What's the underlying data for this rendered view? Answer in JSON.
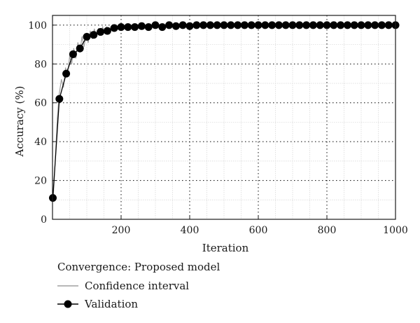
{
  "chart_data": {
    "type": "line",
    "xlabel": "Iteration",
    "ylabel": "Accuracy (%)",
    "xlim": [
      0,
      1000
    ],
    "ylim": [
      0,
      105
    ],
    "xticks": [
      200,
      400,
      600,
      800,
      1000
    ],
    "yticks": [
      0,
      20,
      40,
      60,
      80,
      100
    ],
    "grid": true,
    "legend_title": "Convergence: Proposed model",
    "legend_position": "bottom",
    "series": [
      {
        "name": "Confidence interval",
        "style": "line",
        "color": "#a0a0a0",
        "x": [
          2,
          8,
          14,
          20,
          26,
          32,
          38,
          44,
          50,
          56,
          62,
          68,
          74,
          80,
          86,
          92,
          98,
          104,
          110,
          116,
          122,
          128,
          134,
          140,
          146,
          152,
          158,
          164,
          170,
          176,
          182,
          188,
          194,
          200,
          210,
          220,
          230,
          240,
          250,
          260
        ],
        "values": [
          11,
          30,
          52,
          65,
          72,
          68,
          78,
          74,
          84,
          80,
          88,
          83,
          91,
          86,
          94,
          89,
          95,
          91,
          97,
          93,
          98,
          94,
          98,
          95,
          99,
          96,
          99,
          97,
          99,
          98,
          100,
          98,
          100,
          99,
          99.5,
          99,
          100,
          99.5,
          100,
          99.8
        ]
      },
      {
        "name": "Validation",
        "style": "line-marker",
        "color": "#000000",
        "x": [
          1,
          20,
          40,
          60,
          80,
          100,
          120,
          140,
          160,
          180,
          200,
          220,
          240,
          260,
          280,
          300,
          320,
          340,
          360,
          380,
          400,
          420,
          440,
          460,
          480,
          500,
          520,
          540,
          560,
          580,
          600,
          620,
          640,
          660,
          680,
          700,
          720,
          740,
          760,
          780,
          800,
          820,
          840,
          860,
          880,
          900,
          920,
          940,
          960,
          980,
          1000
        ],
        "values": [
          11,
          62,
          75,
          85,
          88,
          94,
          95,
          96.5,
          97,
          98.5,
          99,
          99,
          99,
          99.5,
          99,
          100,
          99,
          100,
          99.5,
          100,
          99.5,
          100,
          100,
          100,
          100,
          100,
          100,
          100,
          100,
          100,
          100,
          100,
          100,
          100,
          100,
          100,
          100,
          100,
          100,
          100,
          100,
          100,
          100,
          100,
          100,
          100,
          100,
          100,
          100,
          100,
          100
        ]
      }
    ]
  }
}
